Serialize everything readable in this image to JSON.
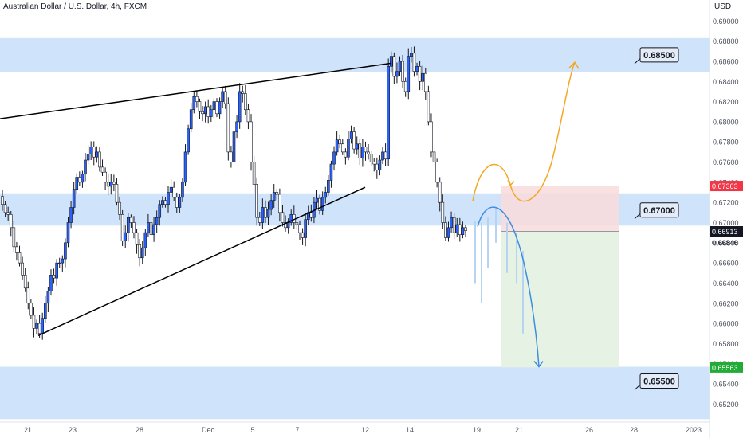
{
  "header": {
    "symbol_title": "Australian Dollar / U.S. Dollar, 4h, FXCM",
    "currency": "USD"
  },
  "colors": {
    "zone": "#cfe3fb",
    "bull": "#2962ff",
    "bear": "#ffffff",
    "wick": "#131722",
    "trendline": "#000000",
    "orange_path": "#f5a623",
    "blue_path": "#3d8ee0",
    "ghost_bars": "#b6d4f2",
    "target_zone": "#e3f1e1",
    "stop_zone": "#f9dcdc",
    "price_badge_current": "#131722",
    "price_badge_stop": "#f23645",
    "price_badge_target": "#22ab36"
  },
  "chart_data": {
    "type": "candlestick",
    "title": "Australian Dollar / U.S. Dollar, 4h, FXCM",
    "y_unit": "USD",
    "ylim": [
      0.651,
      0.6905
    ],
    "y_ticks": [
      "0.69000",
      "0.68800",
      "0.68600",
      "0.68400",
      "0.68200",
      "0.68000",
      "0.67800",
      "0.67600",
      "0.67400",
      "0.67200",
      "0.67000",
      "0.66800",
      "0.66600",
      "0.66400",
      "0.66200",
      "0.66000",
      "0.65800",
      "0.65600",
      "0.65400",
      "0.65200"
    ],
    "x_ticks": [
      "21",
      "23",
      "28",
      "Dec",
      "5",
      "7",
      "12",
      "14",
      "19",
      "21",
      "26",
      "28",
      "2023"
    ],
    "grid": false,
    "zones": [
      {
        "label": "0.68500",
        "low": 0.6849,
        "high": 0.6883
      },
      {
        "label": "0.67000",
        "low": 0.6697,
        "high": 0.6729
      },
      {
        "label": "0.65500",
        "low": 0.6505,
        "high": 0.6557
      }
    ],
    "trendlines": [
      {
        "from": [
          "Nov 18",
          0.6803
        ],
        "to": [
          "Dec 13",
          0.6858
        ]
      },
      {
        "from": [
          "Nov 21",
          0.6588
        ],
        "to": [
          "Dec 12",
          0.6735
        ]
      }
    ],
    "position": {
      "type": "short",
      "entry": 0.66913,
      "stop": 0.67363,
      "target": 0.65563
    },
    "price_labels": {
      "stop": "0.67363",
      "current": "0.66913",
      "target": "0.65563",
      "cursor": "0.66846"
    },
    "callouts": [
      "0.68500",
      "0.67000",
      "0.65500"
    ],
    "forecast_paths": [
      {
        "color": "orange",
        "direction": "up",
        "end": 0.6859
      },
      {
        "color": "blue",
        "direction": "down",
        "end": 0.6557
      }
    ],
    "series": [
      {
        "name": "AUDUSD",
        "closes": [
          0.6718,
          0.671,
          0.6708,
          0.6695,
          0.6676,
          0.667,
          0.666,
          0.6648,
          0.6635,
          0.662,
          0.6608,
          0.6595,
          0.66,
          0.659,
          0.6605,
          0.662,
          0.6632,
          0.6648,
          0.6645,
          0.666,
          0.666,
          0.6664,
          0.668,
          0.67,
          0.6715,
          0.6733,
          0.6745,
          0.674,
          0.6748,
          0.6762,
          0.6768,
          0.6775,
          0.6765,
          0.677,
          0.6755,
          0.675,
          0.674,
          0.6736,
          0.674,
          0.6738,
          0.672,
          0.6708,
          0.6682,
          0.669,
          0.6705,
          0.67,
          0.669,
          0.6678,
          0.6665,
          0.6675,
          0.669,
          0.67,
          0.6688,
          0.6698,
          0.6705,
          0.6718,
          0.6722,
          0.6718,
          0.673,
          0.6735,
          0.6725,
          0.6715,
          0.6725,
          0.674,
          0.677,
          0.6793,
          0.6812,
          0.6825,
          0.682,
          0.681,
          0.6808,
          0.6815,
          0.6805,
          0.6812,
          0.682,
          0.6808,
          0.682,
          0.683,
          0.6818,
          0.677,
          0.676,
          0.679,
          0.68,
          0.683,
          0.6828,
          0.6812,
          0.68,
          0.676,
          0.6738,
          0.6705,
          0.67,
          0.6715,
          0.6705,
          0.6713,
          0.6722,
          0.673,
          0.6728,
          0.671,
          0.67,
          0.6695,
          0.67,
          0.6708,
          0.67,
          0.6698,
          0.669,
          0.6685,
          0.6703,
          0.671,
          0.6705,
          0.672,
          0.6724,
          0.6712,
          0.6725,
          0.673,
          0.6742,
          0.6758,
          0.677,
          0.6782,
          0.6778,
          0.677,
          0.6765,
          0.6783,
          0.679,
          0.6773,
          0.6778,
          0.6764,
          0.6775,
          0.677,
          0.6768,
          0.676,
          0.6758,
          0.6752,
          0.6762,
          0.677,
          0.6763,
          0.6855,
          0.6865,
          0.6845,
          0.685,
          0.686,
          0.684,
          0.683,
          0.6865,
          0.6868,
          0.685,
          0.6855,
          0.684,
          0.6848,
          0.683,
          0.68,
          0.677,
          0.676,
          0.674,
          0.672,
          0.67,
          0.6685,
          0.6695,
          0.6705,
          0.669,
          0.6698,
          0.6688,
          0.6695,
          0.6692
        ]
      }
    ]
  }
}
